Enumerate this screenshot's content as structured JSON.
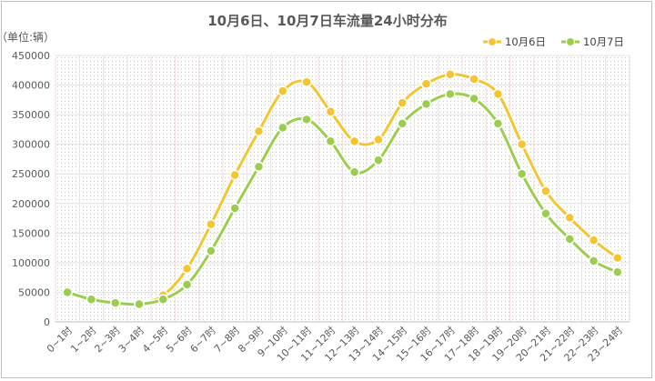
{
  "chart_data": {
    "type": "line",
    "title": "10月6日、10月7日车流量24小时分布",
    "unit_label": "（单位:辆）",
    "categories": [
      "0~1时",
      "1~2时",
      "2~3时",
      "3~4时",
      "4~5时",
      "5~6时",
      "6~7时",
      "7~8时",
      "8~9时",
      "9~10时",
      "10~11时",
      "11~12时",
      "12~13时",
      "13~14时",
      "14~15时",
      "15~16时",
      "16~17时",
      "17~18时",
      "18~19时",
      "19~20时",
      "20~21时",
      "21~22时",
      "22~23时",
      "23~24时"
    ],
    "ylim": [
      0,
      450000
    ],
    "yticks": [
      "0",
      "50000",
      "100000",
      "150000",
      "200000",
      "250000",
      "300000",
      "350000",
      "400000",
      "450000"
    ],
    "legend_position": "top-right",
    "series": [
      {
        "name": "10月6日",
        "color": "#f5c531",
        "values": [
          48000,
          38000,
          32000,
          31000,
          45000,
          90000,
          165000,
          248000,
          322000,
          390000,
          405000,
          355000,
          305000,
          308000,
          370000,
          402000,
          418000,
          410000,
          385000,
          300000,
          221000,
          176000,
          138000,
          108000
        ]
      },
      {
        "name": "10月7日",
        "color": "#9bcd4e",
        "values": [
          50000,
          38000,
          32000,
          30000,
          38000,
          63000,
          120000,
          192000,
          262000,
          328000,
          342000,
          305000,
          253000,
          273000,
          335000,
          368000,
          385000,
          377000,
          335000,
          250000,
          183000,
          140000,
          103000,
          84000
        ]
      }
    ]
  }
}
